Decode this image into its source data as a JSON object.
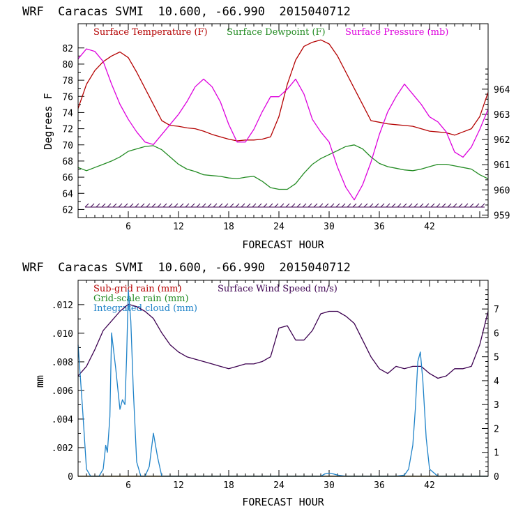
{
  "chart_data": [
    {
      "type": "line",
      "title": "WRF  Caracas SVMI  10.600, -66.990  2015040712",
      "xlabel": "FORECAST HOUR",
      "ylabel": "Degrees F",
      "xlim": [
        0,
        49
      ],
      "ylim": [
        61,
        85
      ],
      "y2lim": [
        958.9,
        966.6
      ],
      "xticks": [
        6,
        12,
        18,
        24,
        30,
        36,
        42
      ],
      "yticks": [
        62,
        64,
        66,
        68,
        70,
        72,
        74,
        76,
        78,
        80,
        82
      ],
      "y2ticks": [
        959,
        960,
        961,
        962,
        963,
        964
      ],
      "legend": [
        "Surface Temperature (F)",
        "Surface Dewpoint (F)",
        "Surface Pressure (mb)"
      ],
      "series": [
        {
          "name": "Surface Temperature (F)",
          "color": "#b40000",
          "axis": "left",
          "x": [
            0,
            1,
            2,
            3,
            4,
            5,
            6,
            7,
            8,
            9,
            10,
            11,
            12,
            13,
            14,
            15,
            16,
            17,
            18,
            19,
            20,
            21,
            22,
            23,
            24,
            25,
            26,
            27,
            28,
            29,
            30,
            31,
            32,
            33,
            34,
            35,
            36,
            37,
            38,
            39,
            40,
            41,
            42,
            43,
            44,
            45,
            46,
            47,
            48,
            49
          ],
          "y": [
            74.5,
            77.5,
            79.2,
            80.3,
            81,
            81.5,
            80.8,
            79,
            77,
            75,
            73,
            72.4,
            72.3,
            72.1,
            72,
            71.7,
            71.3,
            71,
            70.7,
            70.5,
            70.6,
            70.6,
            70.7,
            71,
            73.5,
            77.5,
            80.5,
            82.2,
            82.7,
            83,
            82.5,
            81,
            79,
            77,
            75,
            73,
            72.8,
            72.6,
            72.5,
            72.4,
            72.3,
            72,
            71.7,
            71.6,
            71.5,
            71.2,
            71.6,
            72,
            73.5,
            76.5
          ]
        },
        {
          "name": "Surface Dewpoint (F)",
          "color": "#228b22",
          "axis": "left",
          "x": [
            0,
            1,
            2,
            3,
            4,
            5,
            6,
            7,
            8,
            9,
            10,
            11,
            12,
            13,
            14,
            15,
            16,
            17,
            18,
            19,
            20,
            21,
            22,
            23,
            24,
            25,
            26,
            27,
            28,
            29,
            30,
            31,
            32,
            33,
            34,
            35,
            36,
            37,
            38,
            39,
            40,
            41,
            42,
            43,
            44,
            45,
            46,
            47,
            48,
            49
          ],
          "y": [
            67.2,
            66.8,
            67.2,
            67.6,
            68,
            68.5,
            69.2,
            69.5,
            69.8,
            69.9,
            69.4,
            68.5,
            67.6,
            67,
            66.7,
            66.3,
            66.2,
            66.1,
            65.9,
            65.8,
            66,
            66.1,
            65.5,
            64.7,
            64.5,
            64.5,
            65.2,
            66.5,
            67.6,
            68.3,
            68.8,
            69.3,
            69.8,
            70,
            69.5,
            68.5,
            67.7,
            67.3,
            67.1,
            66.9,
            66.8,
            67,
            67.3,
            67.6,
            67.6,
            67.4,
            67.2,
            67,
            66.3,
            65.8
          ]
        },
        {
          "name": "Surface Pressure (mb)",
          "color": "#dd00dd",
          "axis": "right",
          "x": [
            0,
            1,
            2,
            3,
            4,
            5,
            6,
            7,
            8,
            9,
            10,
            11,
            12,
            13,
            14,
            15,
            16,
            17,
            18,
            19,
            20,
            21,
            22,
            23,
            24,
            25,
            26,
            27,
            28,
            29,
            30,
            31,
            32,
            33,
            34,
            35,
            36,
            37,
            38,
            39,
            40,
            41,
            42,
            43,
            44,
            45,
            46,
            47,
            48,
            49
          ],
          "y": [
            965.2,
            965.6,
            965.5,
            965.1,
            964.2,
            963.4,
            962.8,
            962.3,
            961.9,
            961.8,
            962.2,
            962.6,
            963,
            963.5,
            964.1,
            964.4,
            964.1,
            963.5,
            962.6,
            961.9,
            961.9,
            962.4,
            963.1,
            963.7,
            963.7,
            964,
            964.4,
            963.8,
            962.8,
            962.3,
            961.9,
            960.9,
            960.1,
            959.6,
            960.2,
            961.1,
            962.2,
            963.1,
            963.7,
            964.2,
            963.8,
            963.4,
            962.9,
            962.7,
            962.3,
            961.5,
            961.3,
            961.7,
            962.4,
            963.2
          ]
        }
      ]
    },
    {
      "type": "line",
      "title": "WRF  Caracas SVMI  10.600, -66.990  2015040712",
      "xlabel": "FORECAST HOUR",
      "ylabel": "mm",
      "xlim": [
        0,
        49
      ],
      "ylim": [
        0,
        0.0137
      ],
      "y2lim": [
        0,
        8.2
      ],
      "xticks": [
        6,
        12,
        18,
        24,
        30,
        36,
        42
      ],
      "yticks": [
        0,
        0.002,
        0.004,
        0.006,
        0.008,
        0.01,
        0.012
      ],
      "ytick_labels": [
        "0",
        ".002",
        ".004",
        ".006",
        ".008",
        ".010",
        ".012"
      ],
      "y2ticks": [
        0,
        1,
        2,
        3,
        4,
        5,
        6,
        7
      ],
      "legend": [
        "Sub-grid rain (mm)",
        "Grid-scale rain (mm)",
        "Integrated cloud (mm)",
        "Surface Wind Speed (m/s)"
      ],
      "series": [
        {
          "name": "Sub-grid rain (mm)",
          "color": "#b40000",
          "axis": "left",
          "x": [
            0,
            49
          ],
          "y": [
            0,
            0
          ]
        },
        {
          "name": "Grid-scale rain (mm)",
          "color": "#228b22",
          "axis": "left",
          "x": [
            0,
            49
          ],
          "y": [
            0,
            0
          ]
        },
        {
          "name": "Surface Wind Speed (m/s)",
          "color": "#3c0050",
          "axis": "right",
          "x": [
            0,
            1,
            2,
            3,
            4,
            5,
            6,
            7,
            8,
            9,
            10,
            11,
            12,
            13,
            14,
            15,
            16,
            17,
            18,
            19,
            20,
            21,
            22,
            23,
            24,
            25,
            26,
            27,
            28,
            29,
            30,
            31,
            32,
            33,
            34,
            35,
            36,
            37,
            38,
            39,
            40,
            41,
            42,
            43,
            44,
            45,
            46,
            47,
            48,
            49
          ],
          "y": [
            4.2,
            4.6,
            5.3,
            6.1,
            6.5,
            6.9,
            7.2,
            7.1,
            6.9,
            6.6,
            6,
            5.5,
            5.2,
            5.0,
            4.9,
            4.8,
            4.7,
            4.6,
            4.5,
            4.6,
            4.7,
            4.7,
            4.8,
            5.0,
            6.2,
            6.3,
            5.7,
            5.7,
            6.1,
            6.8,
            6.9,
            6.9,
            6.7,
            6.4,
            5.7,
            5.0,
            4.5,
            4.3,
            4.6,
            4.5,
            4.6,
            4.6,
            4.3,
            4.1,
            4.2,
            4.5,
            4.5,
            4.6,
            5.5,
            6.9
          ]
        },
        {
          "name": "Integrated cloud (mm)",
          "color": "#1e82c8",
          "axis": "right",
          "x": [
            0,
            0.5,
            1,
            1.5,
            2,
            2.5,
            3,
            3.3,
            3.5,
            3.8,
            4,
            4.5,
            5,
            5.3,
            5.6,
            5.8,
            6,
            6.3,
            6.6,
            7,
            7.5,
            8,
            8.5,
            9,
            9.5,
            10,
            11,
            20,
            29,
            29.5,
            30,
            30.5,
            31,
            32,
            38,
            39,
            39.5,
            40,
            40.3,
            40.6,
            40.9,
            41.2,
            41.6,
            42,
            43,
            49
          ],
          "y": [
            5.5,
            3,
            0.3,
            0,
            0,
            0,
            0.3,
            1.3,
            1,
            2.5,
            6,
            4.5,
            2.8,
            3.2,
            3,
            5,
            7.8,
            6.5,
            3.6,
            0.6,
            0,
            0,
            0.4,
            1.8,
            0.8,
            0,
            0,
            0,
            0,
            0.1,
            0.12,
            0.1,
            0.05,
            0,
            0,
            0.05,
            0.3,
            1.3,
            2.8,
            4.8,
            5.2,
            4,
            1.6,
            0.3,
            0,
            0
          ]
        }
      ]
    }
  ]
}
